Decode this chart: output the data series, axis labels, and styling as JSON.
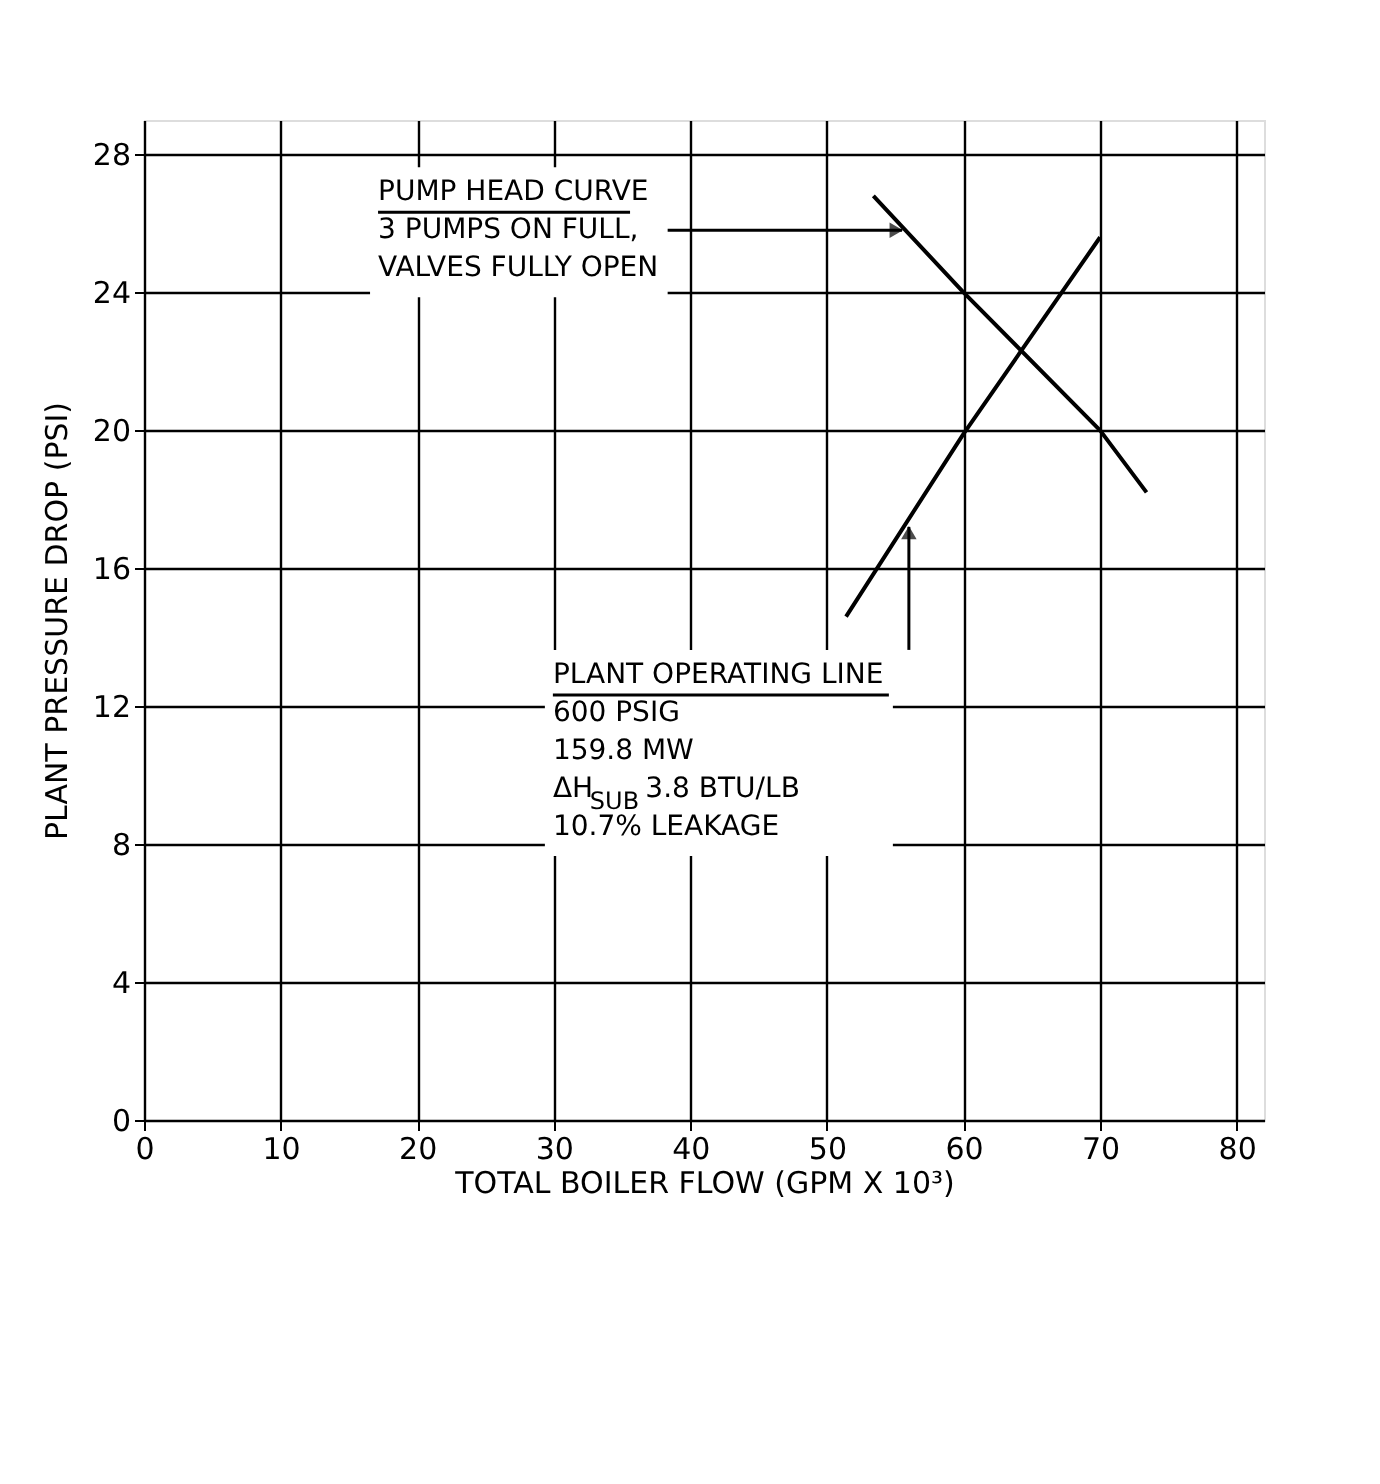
{
  "chart_data": {
    "type": "line",
    "xlabel": "TOTAL  BOILER FLOW (GPM X 10³)",
    "ylabel": "PLANT PRESSURE DROP (PSI)",
    "xlim": [
      0,
      82
    ],
    "ylim": [
      0,
      29
    ],
    "xticks": [
      0,
      10,
      20,
      30,
      40,
      50,
      60,
      70,
      80
    ],
    "yticks": [
      0,
      4,
      8,
      12,
      16,
      20,
      24,
      28
    ],
    "grid": true,
    "marker": "none",
    "line_style": "solid",
    "series": [
      {
        "color": "#000000",
        "x": [
          53.4,
          60,
          70,
          73.4
        ],
        "values": [
          26.8,
          24,
          20,
          18.2
        ]
      },
      {
        "color": "#000000",
        "x": [
          51.4,
          60,
          70
        ],
        "values": [
          14.6,
          19.9,
          25.6
        ]
      }
    ],
    "annotations": [
      {
        "text": "PUMP HEAD CURVE\n3 PUMPS ON FULL,\nVALVES FULLY OPEN",
        "x": 55.5,
        "y": 25.8
      },
      {
        "text": "PLANT OPERATING LINE\n600 PSIG\n159.8 MW\nΔH$_{SUB}$ 3.8 BTU/LB\n10.7% LEAKAGE",
        "x": 56,
        "y": 17.2
      }
    ]
  }
}
